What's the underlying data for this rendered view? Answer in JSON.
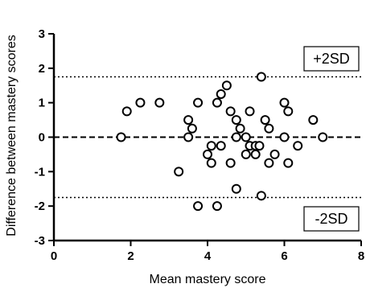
{
  "chart_data": {
    "type": "scatter",
    "title": "",
    "xlabel": "Mean mastery score",
    "ylabel": "Difference between mastery scores",
    "xlim": [
      0,
      8
    ],
    "ylim": [
      -3,
      3
    ],
    "x_ticks": [
      0,
      2,
      4,
      6,
      8
    ],
    "y_ticks": [
      -3,
      -2,
      -1,
      0,
      1,
      2,
      3
    ],
    "grid": false,
    "marker": "open-circle",
    "reference_lines": [
      {
        "y": 1.75,
        "style": "dotted",
        "label": "+2SD"
      },
      {
        "y": 0,
        "style": "dashed",
        "label": ""
      },
      {
        "y": -1.75,
        "style": "dotted",
        "label": "-2SD"
      }
    ],
    "points": [
      {
        "x": 1.75,
        "y": 0.0
      },
      {
        "x": 1.9,
        "y": 0.75
      },
      {
        "x": 2.25,
        "y": 1.0
      },
      {
        "x": 2.75,
        "y": 1.0
      },
      {
        "x": 3.25,
        "y": -1.0
      },
      {
        "x": 3.5,
        "y": 0.5
      },
      {
        "x": 3.5,
        "y": 0.0
      },
      {
        "x": 3.6,
        "y": 0.25
      },
      {
        "x": 3.75,
        "y": 1.0
      },
      {
        "x": 3.75,
        "y": -2.0
      },
      {
        "x": 4.0,
        "y": -0.5
      },
      {
        "x": 4.1,
        "y": -0.25
      },
      {
        "x": 4.1,
        "y": -0.75
      },
      {
        "x": 4.25,
        "y": 1.0
      },
      {
        "x": 4.25,
        "y": -2.0
      },
      {
        "x": 4.35,
        "y": 1.25
      },
      {
        "x": 4.35,
        "y": -0.25
      },
      {
        "x": 4.5,
        "y": 1.5
      },
      {
        "x": 4.6,
        "y": 0.75
      },
      {
        "x": 4.6,
        "y": -0.75
      },
      {
        "x": 4.75,
        "y": 0.5
      },
      {
        "x": 4.75,
        "y": 0.0
      },
      {
        "x": 4.75,
        "y": -1.5
      },
      {
        "x": 4.85,
        "y": 0.25
      },
      {
        "x": 5.0,
        "y": 0.0
      },
      {
        "x": 5.0,
        "y": -0.5
      },
      {
        "x": 5.1,
        "y": 0.75
      },
      {
        "x": 5.1,
        "y": -0.25
      },
      {
        "x": 5.25,
        "y": -0.5
      },
      {
        "x": 5.25,
        "y": -0.25
      },
      {
        "x": 5.35,
        "y": -0.25
      },
      {
        "x": 5.4,
        "y": 1.75
      },
      {
        "x": 5.4,
        "y": -1.7
      },
      {
        "x": 5.5,
        "y": 0.5
      },
      {
        "x": 5.6,
        "y": 0.25
      },
      {
        "x": 5.6,
        "y": -0.75
      },
      {
        "x": 5.75,
        "y": -0.5
      },
      {
        "x": 6.0,
        "y": 1.0
      },
      {
        "x": 6.0,
        "y": 0.0
      },
      {
        "x": 6.1,
        "y": 0.75
      },
      {
        "x": 6.1,
        "y": -0.75
      },
      {
        "x": 6.35,
        "y": -0.25
      },
      {
        "x": 6.75,
        "y": 0.5
      },
      {
        "x": 7.0,
        "y": 0.0
      }
    ]
  }
}
